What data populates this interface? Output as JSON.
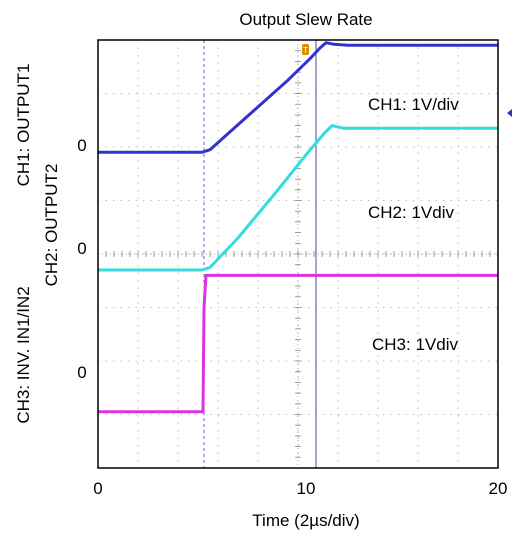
{
  "chart_data": {
    "type": "line",
    "title": "Output Slew Rate",
    "xlabel": "Time (2µs/div)",
    "x_ticks": [
      "0",
      "10",
      "20"
    ],
    "xlim": [
      0,
      20
    ],
    "ylim": [
      0,
      8
    ],
    "y_axis_labels": [
      {
        "text": "CH1: OUTPUT1",
        "zero_label": "0"
      },
      {
        "text": "CH2: OUTPUT2",
        "zero_label": "0"
      },
      {
        "text": "CH3: INV. IN1/IN2",
        "zero_label": "0"
      }
    ],
    "channel_labels": [
      "CH1: 1V/div",
      "CH2: 1Vdiv",
      "CH3: 1Vdiv"
    ],
    "cursor_time": 10.9,
    "trigger_time": 5.3,
    "series": [
      {
        "name": "CH1: 1V/div",
        "color": "#3333cc",
        "x": [
          0,
          5.2,
          5.6,
          6.5,
          8,
          9.5,
          10.6,
          11.1,
          11.4,
          11.8,
          12.5,
          20
        ],
        "y": [
          5.9,
          5.9,
          5.95,
          6.25,
          6.75,
          7.25,
          7.65,
          7.85,
          7.95,
          7.92,
          7.9,
          7.9
        ]
      },
      {
        "name": "CH2: 1Vdiv",
        "color": "#33dddd",
        "x": [
          0,
          5.2,
          5.6,
          7,
          9,
          10.5,
          11.3,
          11.7,
          12.3,
          20
        ],
        "y": [
          3.7,
          3.7,
          3.75,
          4.3,
          5.2,
          5.9,
          6.25,
          6.4,
          6.35,
          6.35
        ]
      },
      {
        "name": "CH3: 1Vdiv",
        "color": "#dd33dd",
        "x": [
          0,
          5.25,
          5.3,
          5.4,
          20
        ],
        "y": [
          1.05,
          1.05,
          3.0,
          3.6,
          3.6
        ]
      }
    ],
    "trigger_marker": "T",
    "grid": true,
    "colors": {
      "grid": "#aaaaaa",
      "dashed_marker": "#6666cc",
      "cursor": "#6666aa",
      "trigger_marker": "#e08a00"
    }
  }
}
